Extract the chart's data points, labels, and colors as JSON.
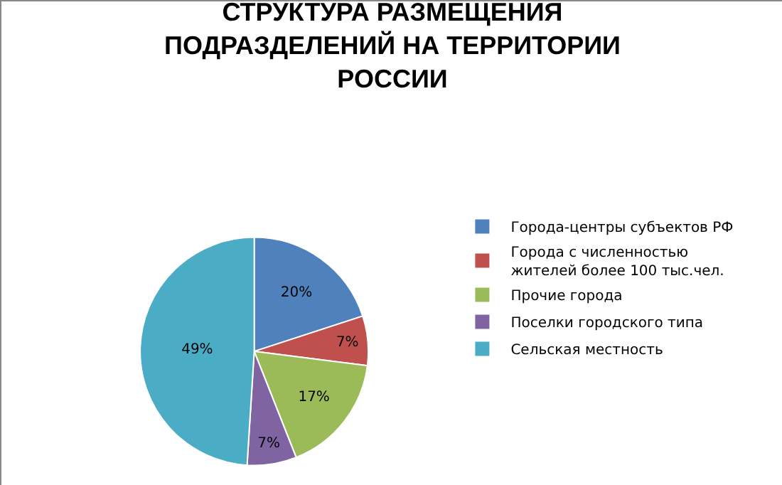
{
  "chart_data": {
    "type": "pie",
    "title": "СТРУКТУРА РАЗМЕЩЕНИЯ ПОДРАЗДЕЛЕНИЙ НА ТЕРРИТОРИИ РОССИИ",
    "categories": [
      "Города-центры субъектов РФ",
      "Города с численностью жителей более 100 тыс.чел.",
      "Прочие города",
      "Поселки городского типа",
      "Сельская местность"
    ],
    "values": [
      20,
      7,
      17,
      7,
      49
    ],
    "colors": [
      "#4f81bd",
      "#c0504d",
      "#9bbb59",
      "#8064a2",
      "#4bacc6"
    ],
    "value_labels": [
      "20%",
      "7%",
      "17%",
      "7%",
      "49%"
    ],
    "legend": "right"
  }
}
